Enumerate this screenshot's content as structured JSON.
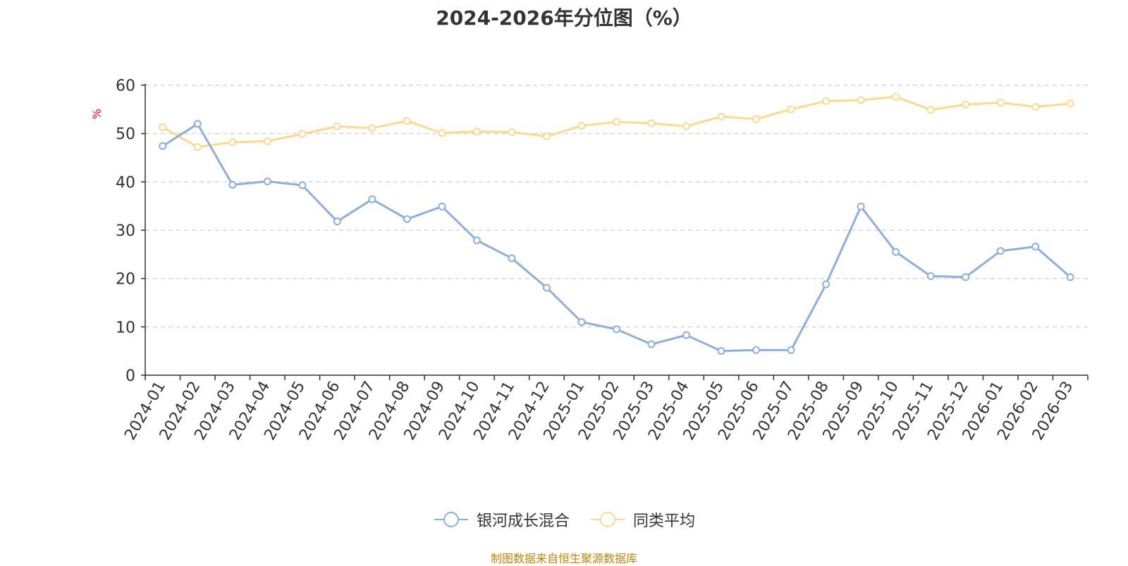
{
  "chart_data": {
    "type": "line",
    "title": "2024-2026年分位图（%）",
    "ylabel": "%",
    "xlabel": "",
    "ylim": [
      0,
      60
    ],
    "yticks": [
      0,
      10,
      20,
      30,
      40,
      50,
      60
    ],
    "grid": true,
    "legend_position": "bottom",
    "categories": [
      "2024-01",
      "2024-02",
      "2024-03",
      "2024-04",
      "2024-05",
      "2024-06",
      "2024-07",
      "2024-08",
      "2024-09",
      "2024-10",
      "2024-11",
      "2024-12",
      "2025-01",
      "2025-02",
      "2025-03",
      "2025-04",
      "2025-05",
      "2025-06",
      "2025-07",
      "2025-08",
      "2025-09",
      "2025-10",
      "2025-11",
      "2025-12",
      "2026-01",
      "2026-02",
      "2026-03"
    ],
    "series": [
      {
        "name": "银河成长混合",
        "color": "#8eaedb",
        "values": [
          47.4,
          52.0,
          39.4,
          40.1,
          39.3,
          31.8,
          36.4,
          32.3,
          34.9,
          27.9,
          24.2,
          18.1,
          11.0,
          9.5,
          6.4,
          8.3,
          5.0,
          5.2,
          5.2,
          18.8,
          34.9,
          25.5,
          20.5,
          20.3,
          25.7,
          26.6,
          20.3
        ]
      },
      {
        "name": "同类平均",
        "color": "#fcd98e",
        "values": [
          51.3,
          47.2,
          48.2,
          48.4,
          49.9,
          51.5,
          51.1,
          52.6,
          50.1,
          50.4,
          50.3,
          49.4,
          51.6,
          52.4,
          52.1,
          51.5,
          53.5,
          53.0,
          55.0,
          56.7,
          56.9,
          57.6,
          54.9,
          56.0,
          56.4,
          55.5,
          56.2
        ]
      }
    ]
  },
  "footer": "制图数据来自恒生聚源数据库"
}
